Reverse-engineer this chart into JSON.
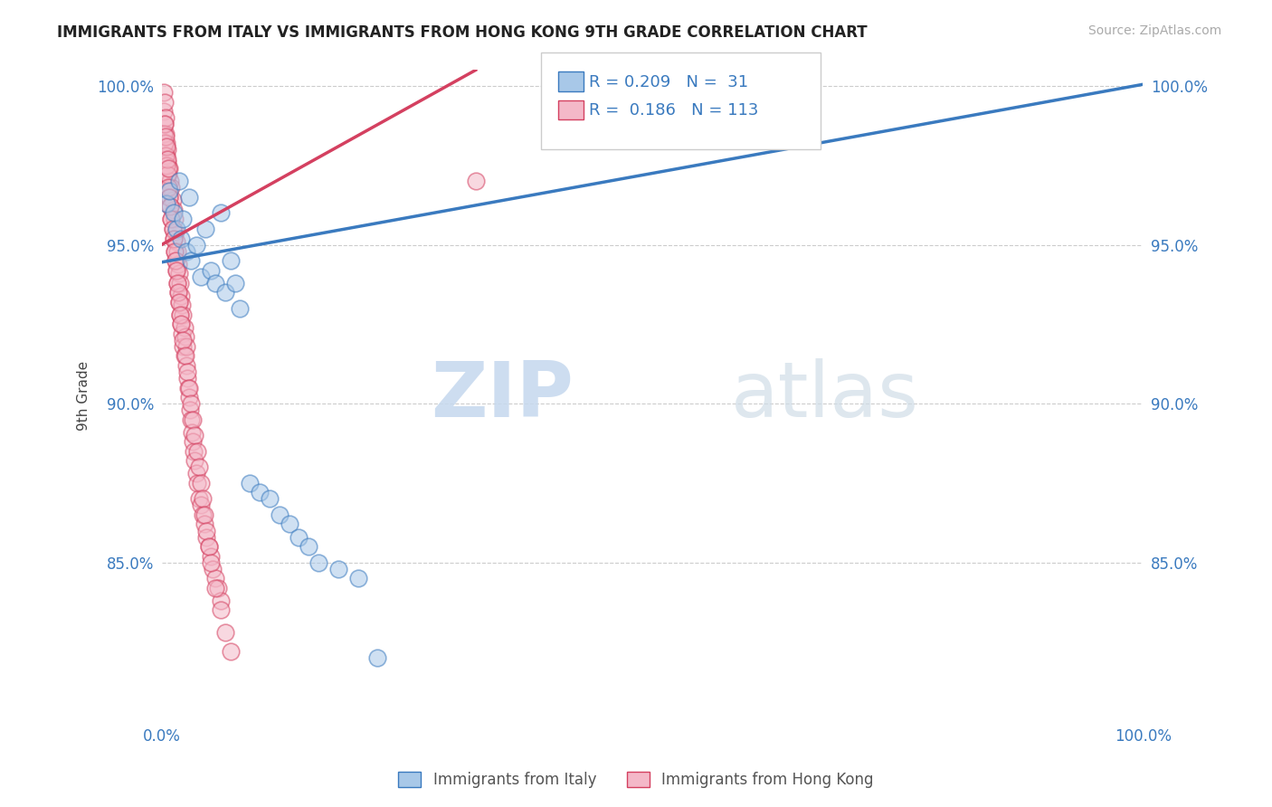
{
  "title": "IMMIGRANTS FROM ITALY VS IMMIGRANTS FROM HONG KONG 9TH GRADE CORRELATION CHART",
  "source_text": "Source: ZipAtlas.com",
  "xlabel_italy": "Immigrants from Italy",
  "xlabel_hk": "Immigrants from Hong Kong",
  "ylabel": "9th Grade",
  "xlim": [
    0.0,
    1.0
  ],
  "ylim": [
    0.8,
    1.005
  ],
  "yticks": [
    0.85,
    0.9,
    0.95,
    1.0
  ],
  "ytick_labels": [
    "85.0%",
    "90.0%",
    "95.0%",
    "100.0%"
  ],
  "italy_color": "#a8c8e8",
  "hk_color": "#f4b8c8",
  "italy_line_color": "#3a7abf",
  "hk_line_color": "#d44060",
  "R_italy": 0.209,
  "N_italy": 31,
  "R_hk": 0.186,
  "N_hk": 113,
  "italy_x": [
    0.005,
    0.008,
    0.012,
    0.015,
    0.018,
    0.02,
    0.022,
    0.025,
    0.028,
    0.03,
    0.035,
    0.04,
    0.045,
    0.05,
    0.055,
    0.06,
    0.065,
    0.07,
    0.075,
    0.08,
    0.09,
    0.1,
    0.11,
    0.12,
    0.13,
    0.14,
    0.15,
    0.16,
    0.18,
    0.2,
    0.22
  ],
  "italy_y": [
    0.963,
    0.967,
    0.96,
    0.955,
    0.97,
    0.952,
    0.958,
    0.948,
    0.965,
    0.945,
    0.95,
    0.94,
    0.955,
    0.942,
    0.938,
    0.96,
    0.935,
    0.945,
    0.938,
    0.93,
    0.875,
    0.872,
    0.87,
    0.865,
    0.862,
    0.858,
    0.855,
    0.85,
    0.848,
    0.845,
    0.82
  ],
  "hk_x": [
    0.002,
    0.002,
    0.003,
    0.003,
    0.004,
    0.004,
    0.005,
    0.005,
    0.005,
    0.006,
    0.006,
    0.007,
    0.007,
    0.008,
    0.008,
    0.009,
    0.009,
    0.01,
    0.01,
    0.011,
    0.011,
    0.012,
    0.012,
    0.013,
    0.013,
    0.014,
    0.014,
    0.015,
    0.015,
    0.016,
    0.016,
    0.017,
    0.017,
    0.018,
    0.018,
    0.019,
    0.019,
    0.02,
    0.02,
    0.021,
    0.021,
    0.022,
    0.022,
    0.023,
    0.023,
    0.024,
    0.025,
    0.025,
    0.026,
    0.027,
    0.028,
    0.029,
    0.03,
    0.031,
    0.032,
    0.033,
    0.034,
    0.035,
    0.036,
    0.038,
    0.04,
    0.042,
    0.044,
    0.046,
    0.048,
    0.05,
    0.052,
    0.055,
    0.058,
    0.06,
    0.002,
    0.003,
    0.004,
    0.005,
    0.006,
    0.007,
    0.008,
    0.009,
    0.01,
    0.011,
    0.012,
    0.013,
    0.014,
    0.015,
    0.016,
    0.017,
    0.018,
    0.019,
    0.02,
    0.022,
    0.024,
    0.026,
    0.028,
    0.03,
    0.032,
    0.034,
    0.036,
    0.038,
    0.04,
    0.042,
    0.044,
    0.046,
    0.048,
    0.05,
    0.055,
    0.06,
    0.065,
    0.07,
    0.003,
    0.004,
    0.005,
    0.006,
    0.007,
    0.32
  ],
  "hk_y": [
    0.998,
    0.992,
    0.995,
    0.988,
    0.985,
    0.99,
    0.982,
    0.978,
    0.975,
    0.98,
    0.976,
    0.972,
    0.968,
    0.974,
    0.965,
    0.97,
    0.962,
    0.968,
    0.958,
    0.964,
    0.955,
    0.961,
    0.952,
    0.958,
    0.948,
    0.954,
    0.945,
    0.951,
    0.942,
    0.948,
    0.938,
    0.944,
    0.935,
    0.941,
    0.932,
    0.938,
    0.928,
    0.934,
    0.925,
    0.931,
    0.922,
    0.928,
    0.918,
    0.924,
    0.915,
    0.921,
    0.918,
    0.912,
    0.908,
    0.905,
    0.902,
    0.898,
    0.895,
    0.891,
    0.888,
    0.885,
    0.882,
    0.878,
    0.875,
    0.87,
    0.868,
    0.865,
    0.862,
    0.858,
    0.855,
    0.852,
    0.848,
    0.845,
    0.842,
    0.838,
    0.985,
    0.982,
    0.978,
    0.975,
    0.972,
    0.968,
    0.965,
    0.962,
    0.958,
    0.955,
    0.952,
    0.948,
    0.945,
    0.942,
    0.938,
    0.935,
    0.932,
    0.928,
    0.925,
    0.92,
    0.915,
    0.91,
    0.905,
    0.9,
    0.895,
    0.89,
    0.885,
    0.88,
    0.875,
    0.87,
    0.865,
    0.86,
    0.855,
    0.85,
    0.842,
    0.835,
    0.828,
    0.822,
    0.988,
    0.984,
    0.981,
    0.977,
    0.974,
    0.97
  ],
  "watermark_zip": "ZIP",
  "watermark_atlas": "atlas",
  "background_color": "#ffffff",
  "grid_color": "#cccccc"
}
